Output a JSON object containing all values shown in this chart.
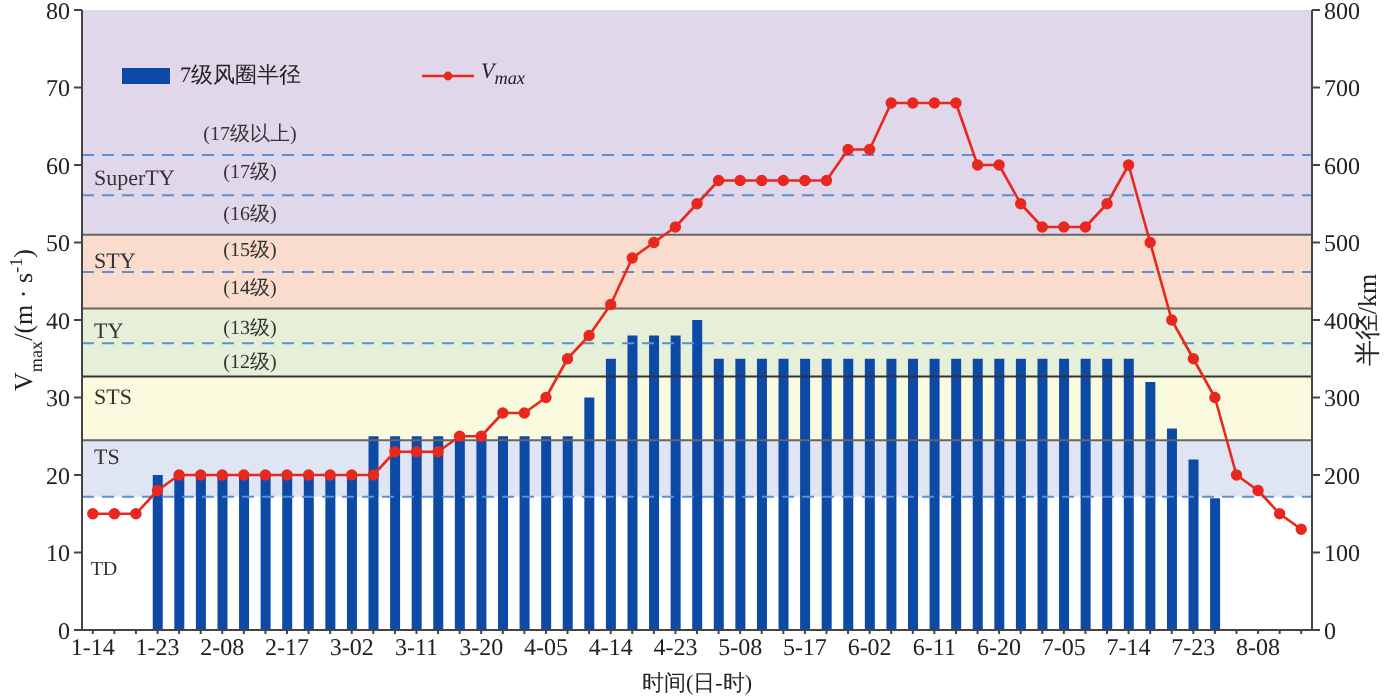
{
  "chart_data": {
    "type": "bar",
    "xlabel": "时间(日-时)",
    "ylabel": "V$_{max}$/(m · s$^{-1}$)",
    "y2label": "半径/km",
    "categories": [
      "1-14",
      null,
      null,
      "1-23",
      null,
      null,
      "2-08",
      null,
      null,
      "2-17",
      null,
      null,
      "3-02",
      null,
      null,
      "3-11",
      null,
      null,
      "3-20",
      null,
      null,
      "4-05",
      null,
      null,
      "4-14",
      null,
      null,
      "4-23",
      null,
      null,
      "5-08",
      null,
      null,
      "5-17",
      null,
      null,
      "6-02",
      null,
      null,
      "6-11",
      null,
      null,
      "6-20",
      null,
      null,
      "7-05",
      null,
      null,
      "7-14",
      null,
      null,
      "7-23",
      null,
      null,
      "8-08",
      null,
      null
    ],
    "series": [
      {
        "name": "7级风圈半径",
        "axis": "y2",
        "color": "#0d4aa6",
        "values": [
          null,
          null,
          null,
          200,
          200,
          200,
          200,
          200,
          200,
          200,
          200,
          200,
          200,
          250,
          250,
          250,
          250,
          250,
          250,
          250,
          250,
          250,
          250,
          300,
          350,
          380,
          380,
          380,
          400,
          350,
          350,
          350,
          350,
          350,
          350,
          350,
          350,
          350,
          350,
          350,
          350,
          350,
          350,
          350,
          350,
          350,
          350,
          350,
          350,
          320,
          260,
          220,
          170,
          null,
          null,
          null,
          null
        ]
      },
      {
        "name": "V$_{max}$",
        "type": "line",
        "axis": "y",
        "color": "#e8281e",
        "marker": "circle",
        "values": [
          15,
          15,
          15,
          18,
          20,
          20,
          20,
          20,
          20,
          20,
          20,
          20,
          20,
          20,
          23,
          23,
          23,
          25,
          25,
          28,
          28,
          30,
          35,
          38,
          42,
          48,
          50,
          52,
          55,
          58,
          58,
          58,
          58,
          58,
          58,
          62,
          62,
          68,
          68,
          68,
          68,
          60,
          60,
          55,
          52,
          52,
          52,
          55,
          60,
          50,
          40,
          35,
          30,
          20,
          18,
          15,
          13
        ]
      }
    ],
    "ylim": [
      0,
      80
    ],
    "yticks": [
      0,
      10,
      20,
      30,
      40,
      50,
      60,
      70,
      80
    ],
    "y2lim": [
      0,
      800
    ],
    "y2ticks": [
      0,
      100,
      200,
      300,
      400,
      500,
      600,
      700,
      800
    ],
    "legend": "top left",
    "bands": [
      {
        "axis": "y",
        "from": 17.2,
        "to": 24.5,
        "label": "TS",
        "color": "#dfe5f3"
      },
      {
        "axis": "y",
        "from": 24.5,
        "to": 32.7,
        "label": "STS",
        "color": "#fafadf"
      },
      {
        "axis": "y",
        "from": 32.7,
        "to": 41.5,
        "label": "TY",
        "color": "#e6f0d9"
      },
      {
        "axis": "y",
        "from": 41.5,
        "to": 51,
        "label": "STY",
        "color": "#f9dccb"
      },
      {
        "axis": "y",
        "from": 51,
        "to": 80,
        "label": "SuperTY",
        "color": "#e0d7ea"
      }
    ],
    "ref_lines": [
      {
        "axis": "y",
        "value": 17.2,
        "color": "#5b8fd6",
        "line_style": "dashed"
      },
      {
        "axis": "y",
        "value": 24.5,
        "color": "#666666",
        "line_style": "solid"
      },
      {
        "axis": "y",
        "value": 32.7,
        "color": "#333333",
        "line_style": "solid"
      },
      {
        "axis": "y",
        "value": 37,
        "color": "#5b8fd6",
        "line_style": "dashed"
      },
      {
        "axis": "y",
        "value": 41.5,
        "color": "#666666",
        "line_style": "solid"
      },
      {
        "axis": "y",
        "value": 46.2,
        "color": "#5b8fd6",
        "line_style": "dashed"
      },
      {
        "axis": "y",
        "value": 51,
        "color": "#666666",
        "line_style": "solid"
      },
      {
        "axis": "y",
        "value": 56.1,
        "color": "#5b8fd6",
        "line_style": "dashed"
      },
      {
        "axis": "y",
        "value": 61.3,
        "color": "#5b8fd6",
        "line_style": "dashed"
      }
    ],
    "annotations": [
      "TD",
      "(12级)",
      "(13级)",
      "(14级)",
      "(15级)",
      "(16级)",
      "(17级)",
      "(17级以上)"
    ]
  }
}
